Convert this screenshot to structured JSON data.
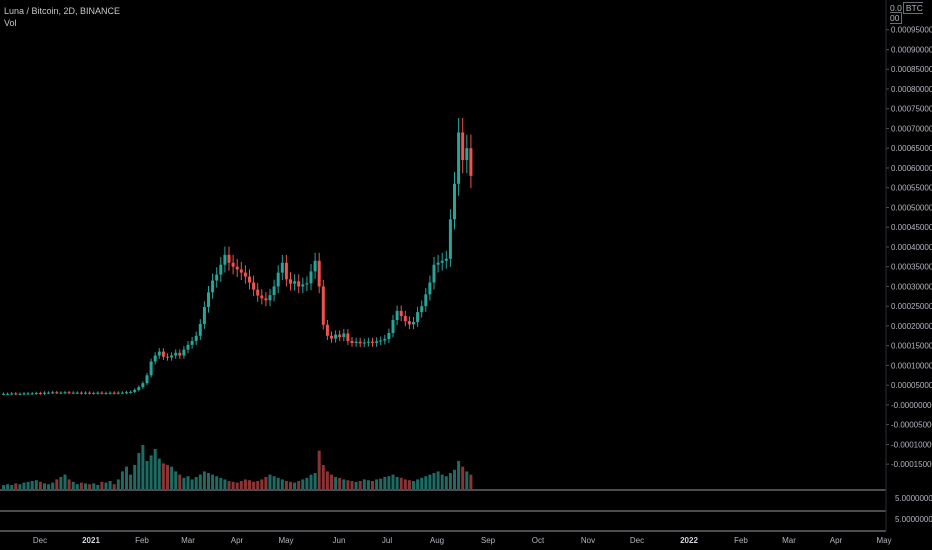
{
  "header": {
    "symbol_line": "Luna / Bitcoin, 2D, BINANCE",
    "indicator": "Vol"
  },
  "price_scale": {
    "top_prefix": "0.0",
    "currency_box": "BTC 00",
    "currency_suffix": ""
  },
  "colors": {
    "background": "#000000",
    "up": "#26a69a",
    "down": "#ef5350",
    "up_volume": "#1e6b63",
    "down_volume": "#8a3434",
    "axis_text": "#b2b5be",
    "separator": "#9598a1"
  },
  "chart_data": {
    "type": "candlestick",
    "title": "Luna / Bitcoin, 2D, BINANCE",
    "interval": "2D",
    "y_axis": {
      "ylim": [
        -0.00018,
        0.001
      ],
      "tick_labels": [
        "0.00095000",
        "0.00090000",
        "0.00085000",
        "0.00080000",
        "0.00075000",
        "0.00070000",
        "0.00065000",
        "0.00060000",
        "0.00055000",
        "0.00050000",
        "0.00045000",
        "0.00040000",
        "0.00035000",
        "0.00030000",
        "0.00025000",
        "0.00020000",
        "0.00015000",
        "0.00010000",
        "0.00005000",
        "-0.00000000",
        "-0.00005000",
        "-0.00010000",
        "-0.00015000"
      ],
      "tick_values": [
        0.00095,
        0.0009,
        0.00085,
        0.0008,
        0.00075,
        0.0007,
        0.00065,
        0.0006,
        0.00055,
        0.0005,
        0.00045,
        0.0004,
        0.00035,
        0.0003,
        0.00025,
        0.0002,
        0.00015,
        0.0001,
        5e-05,
        0,
        -5e-05,
        -0.0001,
        -0.00015
      ]
    },
    "x_axis": {
      "tick_labels": [
        "Dec",
        "2021",
        "Feb",
        "Mar",
        "Apr",
        "May",
        "Jun",
        "Jul",
        "Aug",
        "Sep",
        "Oct",
        "Nov",
        "Dec",
        "2022",
        "Feb",
        "Mar",
        "Apr",
        "May"
      ],
      "year_ticks": [
        "2021",
        "2022"
      ]
    },
    "sub_panes": [
      {
        "label": "5.00000000"
      },
      {
        "label": "5.00000000"
      }
    ],
    "closes": [
      2.8e-05,
      2.8e-05,
      2.9e-05,
      2.8e-05,
      2.8e-05,
      2.9e-05,
      2.9e-05,
      2.9e-05,
      3e-05,
      2.9e-05,
      3.1e-05,
      3.1e-05,
      3.2e-05,
      3.1e-05,
      3.1e-05,
      3.2e-05,
      3.1e-05,
      3.1e-05,
      3.1e-05,
      3e-05,
      3.1e-05,
      3e-05,
      3e-05,
      3.1e-05,
      3e-05,
      3e-05,
      3.1e-05,
      3e-05,
      3.1e-05,
      3.1e-05,
      3.2e-05,
      3.3e-05,
      3.8e-05,
      4.5e-05,
      5.5e-05,
      7.5e-05,
      0.00011,
      0.000125,
      0.000135,
      0.000122,
      0.00012,
      0.000125,
      0.000132,
      0.000125,
      0.00014,
      0.000152,
      0.000162,
      0.000175,
      0.000205,
      0.000248,
      0.000285,
      0.000315,
      0.00033,
      0.000355,
      0.00038,
      0.00036,
      0.00035,
      0.000343,
      0.000335,
      0.000325,
      0.00031,
      0.000292,
      0.000277,
      0.00027,
      0.000265,
      0.000278,
      0.0003,
      0.000335,
      0.00036,
      0.000318,
      0.000307,
      0.000313,
      0.0003,
      0.000305,
      0.000308,
      0.000338,
      0.000365,
      0.0003,
      0.000203,
      0.000175,
      0.000168,
      0.000178,
      0.000172,
      0.000181,
      0.000162,
      0.000157,
      0.00016,
      0.000156,
      0.000158,
      0.00016,
      0.000157,
      0.000161,
      0.000163,
      0.000167,
      0.000182,
      0.000215,
      0.000238,
      0.000225,
      0.000212,
      0.000204,
      0.00021,
      0.000235,
      0.00025,
      0.00028,
      0.00031,
      0.000355,
      0.00036,
      0.000365,
      0.00037,
      0.00047,
      0.00056,
      0.00069,
      0.00062,
      0.00065,
      0.00058
    ],
    "volumes": [
      0.05,
      0.06,
      0.05,
      0.07,
      0.06,
      0.08,
      0.09,
      0.1,
      0.11,
      0.09,
      0.07,
      0.06,
      0.08,
      0.12,
      0.15,
      0.18,
      0.12,
      0.09,
      0.06,
      0.08,
      0.07,
      0.06,
      0.07,
      0.05,
      0.09,
      0.08,
      0.1,
      0.06,
      0.12,
      0.22,
      0.28,
      0.18,
      0.3,
      0.45,
      0.55,
      0.35,
      0.42,
      0.5,
      0.38,
      0.32,
      0.3,
      0.28,
      0.22,
      0.18,
      0.14,
      0.16,
      0.12,
      0.15,
      0.18,
      0.22,
      0.2,
      0.18,
      0.16,
      0.14,
      0.12,
      0.1,
      0.09,
      0.08,
      0.1,
      0.12,
      0.11,
      0.09,
      0.1,
      0.12,
      0.15,
      0.18,
      0.16,
      0.14,
      0.12,
      0.1,
      0.09,
      0.08,
      0.1,
      0.12,
      0.14,
      0.18,
      0.2,
      0.48,
      0.3,
      0.22,
      0.18,
      0.15,
      0.14,
      0.12,
      0.11,
      0.1,
      0.09,
      0.1,
      0.12,
      0.11,
      0.1,
      0.12,
      0.13,
      0.15,
      0.16,
      0.18,
      0.15,
      0.14,
      0.12,
      0.11,
      0.1,
      0.12,
      0.14,
      0.16,
      0.18,
      0.2,
      0.22,
      0.18,
      0.16,
      0.2,
      0.24,
      0.35,
      0.28,
      0.22,
      0.18
    ]
  }
}
